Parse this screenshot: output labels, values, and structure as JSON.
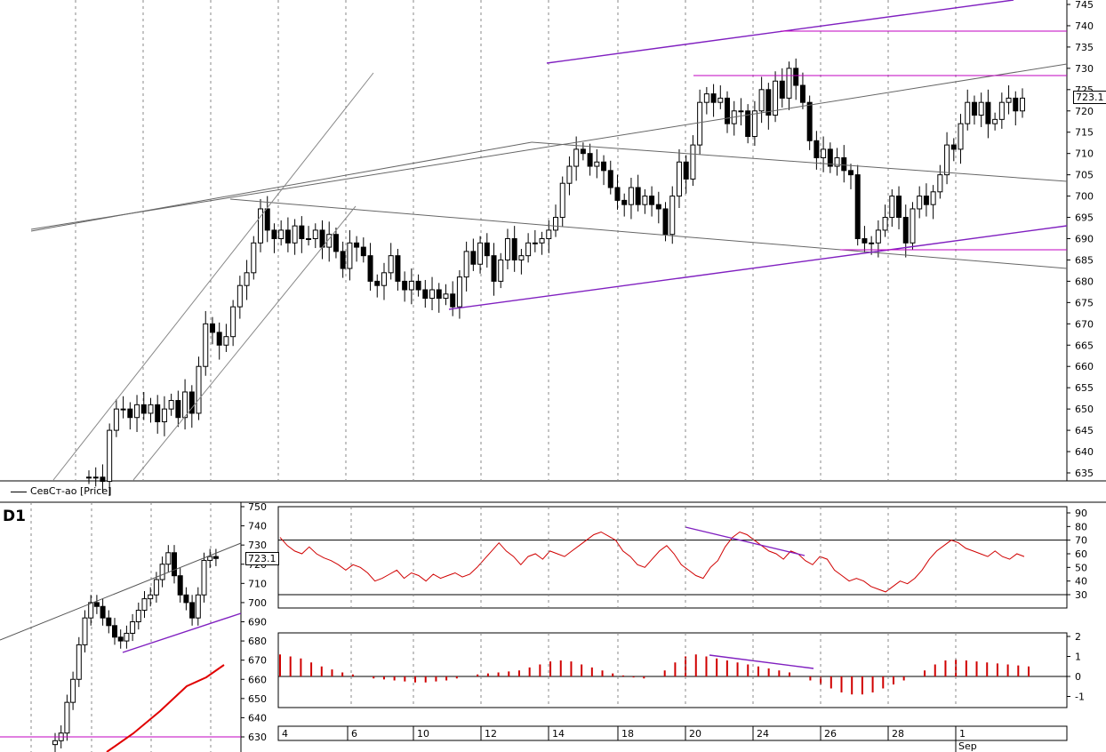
{
  "main_chart": {
    "legend": "СевСт-ао [Price]",
    "last_price_label": "723.1",
    "y_ticks": [
      745,
      740,
      735,
      730,
      725,
      720,
      715,
      710,
      705,
      700,
      695,
      690,
      685,
      680,
      675,
      670,
      665,
      660,
      655,
      650,
      645,
      640,
      635
    ]
  },
  "daily_chart": {
    "label": "D1",
    "last_price_label": "723.1",
    "y_ticks": [
      750,
      740,
      730,
      720,
      710,
      700,
      690,
      680,
      670,
      660,
      650,
      640,
      630
    ]
  },
  "rsi_panel": {
    "y_ticks": [
      90,
      80,
      70,
      60,
      50,
      40,
      30
    ]
  },
  "ao_panel": {
    "y_ticks": [
      "2",
      "1",
      "0",
      "-1"
    ]
  },
  "time_axis": {
    "labels": [
      "4",
      "6",
      "10",
      "12",
      "14",
      "18",
      "20",
      "24",
      "26",
      "28",
      "1"
    ],
    "month_label": "Sep"
  },
  "chart_data": [
    {
      "type": "candlestick",
      "name": "СевСт-ао [Price]",
      "ylim": [
        632,
        746
      ],
      "series_close": [
        634,
        634,
        633,
        645,
        650,
        650,
        648,
        651,
        649,
        651,
        647,
        650,
        652,
        648,
        654,
        649,
        660,
        670,
        668,
        665,
        667,
        674,
        679,
        682,
        689,
        697,
        692,
        690,
        692,
        689,
        693,
        690,
        690,
        692,
        688,
        691,
        687,
        683,
        689,
        688,
        686,
        680,
        679,
        682,
        686,
        680,
        678,
        680,
        678,
        676,
        678,
        676,
        677,
        674,
        681,
        687,
        684,
        689,
        686,
        680,
        685,
        690,
        685,
        686,
        689,
        689,
        690,
        692,
        695,
        703,
        707,
        711,
        710,
        707,
        708,
        706,
        702,
        699,
        698,
        702,
        698,
        700,
        698,
        697,
        691,
        700,
        708,
        704,
        712,
        722,
        724,
        722,
        723,
        717,
        720,
        720,
        714,
        720,
        725,
        719,
        727,
        723,
        730,
        726,
        722,
        713,
        709,
        711,
        707,
        709,
        706,
        705,
        690,
        689,
        689,
        692,
        695,
        700,
        695,
        689,
        697,
        700,
        698,
        701,
        705,
        712,
        711,
        717,
        722,
        719,
        722,
        717,
        718,
        722,
        723,
        720,
        723
      ],
      "grid_x_days": [
        "4",
        "6",
        "10",
        "12",
        "14",
        "18",
        "20",
        "24",
        "26",
        "28",
        "1"
      ],
      "last": 723.1
    },
    {
      "type": "line",
      "name": "RSI",
      "ylim": [
        25,
        92
      ],
      "levels": [
        70,
        30
      ],
      "values": [
        72,
        66,
        62,
        60,
        65,
        60,
        57,
        55,
        52,
        48,
        52,
        50,
        46,
        40,
        42,
        45,
        48,
        42,
        46,
        44,
        40,
        45,
        42,
        44,
        46,
        43,
        45,
        50,
        56,
        62,
        68,
        62,
        58,
        52,
        58,
        60,
        56,
        62,
        60,
        58,
        62,
        66,
        70,
        74,
        76,
        73,
        70,
        62,
        58,
        52,
        50,
        56,
        62,
        66,
        60,
        52,
        48,
        44,
        42,
        50,
        55,
        65,
        72,
        76,
        74,
        70,
        66,
        62,
        60,
        56,
        62,
        60,
        55,
        52,
        58,
        56,
        48,
        44,
        40,
        42,
        40,
        36,
        34,
        32,
        36,
        40,
        38,
        42,
        48,
        56,
        62,
        66,
        70,
        68,
        64,
        62,
        60,
        58,
        62,
        58,
        56,
        60,
        58
      ]
    },
    {
      "type": "bar",
      "name": "Oscillator",
      "ylim": [
        -1.5,
        2
      ],
      "values": [
        1.1,
        1.0,
        0.9,
        0.7,
        0.5,
        0.35,
        0.2,
        0.1,
        0.0,
        -0.1,
        -0.15,
        -0.2,
        -0.25,
        -0.3,
        -0.3,
        -0.25,
        -0.2,
        -0.1,
        0.0,
        0.1,
        0.15,
        0.2,
        0.25,
        0.3,
        0.45,
        0.6,
        0.75,
        0.8,
        0.75,
        0.6,
        0.45,
        0.3,
        0.15,
        0.05,
        -0.05,
        -0.1,
        0.0,
        0.3,
        0.7,
        1.0,
        1.1,
        1.0,
        0.9,
        0.8,
        0.7,
        0.6,
        0.5,
        0.4,
        0.3,
        0.2,
        0.0,
        -0.2,
        -0.4,
        -0.6,
        -0.8,
        -0.9,
        -0.9,
        -0.8,
        -0.6,
        -0.4,
        -0.2,
        0.0,
        0.3,
        0.6,
        0.8,
        0.85,
        0.8,
        0.75,
        0.7,
        0.65,
        0.6,
        0.55,
        0.5
      ]
    }
  ]
}
